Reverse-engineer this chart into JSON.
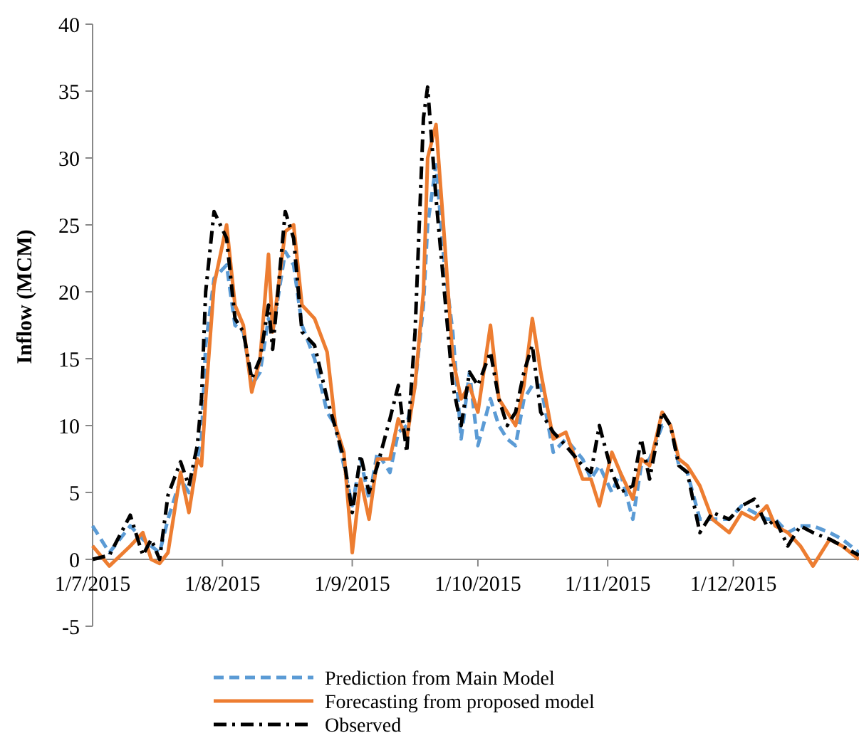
{
  "chart_data": {
    "type": "line",
    "ylabel": "Inflow (MCM)",
    "x": [
      "2015-07-01",
      "2015-07-05",
      "2015-07-10",
      "2015-07-13",
      "2015-07-15",
      "2015-07-17",
      "2015-07-19",
      "2015-07-22",
      "2015-07-24",
      "2015-07-26",
      "2015-07-27",
      "2015-07-28",
      "2015-07-30",
      "2015-08-02",
      "2015-08-04",
      "2015-08-06",
      "2015-08-08",
      "2015-08-10",
      "2015-08-12",
      "2015-08-13",
      "2015-08-16",
      "2015-08-18",
      "2015-08-20",
      "2015-08-23",
      "2015-08-26",
      "2015-08-28",
      "2015-08-30",
      "2015-09-01",
      "2015-09-03",
      "2015-09-05",
      "2015-09-07",
      "2015-09-10",
      "2015-09-12",
      "2015-09-14",
      "2015-09-16",
      "2015-09-18",
      "2015-09-19",
      "2015-09-21",
      "2015-09-23",
      "2015-09-25",
      "2015-09-27",
      "2015-09-29",
      "2015-10-01",
      "2015-10-04",
      "2015-10-06",
      "2015-10-08",
      "2015-10-10",
      "2015-10-12",
      "2015-10-14",
      "2015-10-16",
      "2015-10-19",
      "2015-10-22",
      "2015-10-26",
      "2015-10-28",
      "2015-10-30",
      "2015-11-02",
      "2015-11-04",
      "2015-11-07",
      "2015-11-09",
      "2015-11-11",
      "2015-11-14",
      "2015-11-16",
      "2015-11-18",
      "2015-11-20",
      "2015-11-23",
      "2015-11-26",
      "2015-11-30",
      "2015-12-03",
      "2015-12-06",
      "2015-12-09",
      "2015-12-11",
      "2015-12-14",
      "2015-12-17",
      "2015-12-20",
      "2015-12-24",
      "2015-12-27",
      "2015-12-31"
    ],
    "series": [
      {
        "name": "Prediction from Main Model",
        "color": "#5b9bd5",
        "line_style": "dashed",
        "values": [
          2.5,
          0.5,
          2.5,
          1.5,
          1,
          0.5,
          3,
          6,
          5,
          7.5,
          9,
          16,
          21,
          22,
          17.5,
          17,
          13,
          14,
          18,
          17,
          23,
          22,
          17.5,
          15,
          11,
          10,
          7,
          4,
          7.5,
          4.5,
          8,
          6.5,
          9.5,
          10,
          13,
          19,
          25,
          29.5,
          22,
          17,
          9,
          14,
          8.5,
          12,
          10,
          9,
          8.5,
          12,
          13,
          13,
          8,
          9,
          7.5,
          6,
          7,
          5,
          6.5,
          3,
          7,
          7.5,
          10,
          10,
          7,
          6.5,
          3,
          3,
          3,
          4,
          3.5,
          3,
          3,
          2,
          2.5,
          2.5,
          2,
          1.5,
          0.5
        ]
      },
      {
        "name": "Forecasting from proposed model",
        "color": "#ed7d31",
        "line_style": "solid",
        "values": [
          1,
          -0.5,
          1,
          2,
          0,
          -0.3,
          0.5,
          6.5,
          3.5,
          7.5,
          7,
          12,
          20.5,
          25,
          19,
          17.5,
          12.5,
          15,
          22.8,
          17,
          24.5,
          25,
          19,
          18,
          15.5,
          10,
          8,
          0.5,
          6,
          3,
          7.5,
          7.5,
          10.5,
          9,
          13,
          20,
          30,
          32.5,
          24,
          15,
          12,
          13,
          11,
          17.5,
          12,
          11,
          10,
          13,
          18,
          14,
          9,
          9.5,
          6,
          6,
          4,
          8,
          6.5,
          4.5,
          7.5,
          7,
          11,
          10,
          7.5,
          7,
          5.5,
          3,
          2,
          3.5,
          3,
          4,
          2.5,
          2,
          1,
          -0.5,
          1.5,
          1,
          0
        ]
      },
      {
        "name": "Observed",
        "color": "#000000",
        "line_style": "dashdot",
        "values": [
          0,
          0.3,
          3.3,
          0.3,
          1.5,
          0,
          4.8,
          7.3,
          5.5,
          8.5,
          12,
          20,
          26,
          24,
          18,
          17,
          13.5,
          15,
          19,
          15.7,
          26,
          24,
          17,
          16,
          12,
          9.8,
          7.5,
          3.5,
          7.8,
          5,
          7,
          10.5,
          13,
          8,
          17,
          33,
          35.3,
          27,
          20,
          13,
          10,
          14,
          13,
          15.5,
          12,
          10,
          11,
          14,
          16,
          11,
          9.5,
          8.5,
          7,
          6.5,
          10,
          6.5,
          5,
          5.5,
          9,
          6,
          11,
          10,
          7,
          6.5,
          2,
          3.5,
          3,
          4,
          4.5,
          2.5,
          3,
          1,
          2.5,
          2,
          1.5,
          1,
          0.3
        ]
      }
    ],
    "xlim": [
      "2015-07-01",
      "2015-12-31"
    ],
    "xticks": [
      {
        "value": "2015-07-01",
        "label": "1/7/2015"
      },
      {
        "value": "2015-08-01",
        "label": "1/8/2015"
      },
      {
        "value": "2015-09-01",
        "label": "1/9/2015"
      },
      {
        "value": "2015-10-01",
        "label": "1/10/2015"
      },
      {
        "value": "2015-11-01",
        "label": "1/11/2015"
      },
      {
        "value": "2015-12-01",
        "label": "1/12/2015"
      }
    ],
    "ylim": [
      -5,
      40
    ],
    "yticks": [
      -5,
      0,
      5,
      10,
      15,
      20,
      25,
      30,
      35,
      40
    ],
    "legend": "bottom"
  }
}
